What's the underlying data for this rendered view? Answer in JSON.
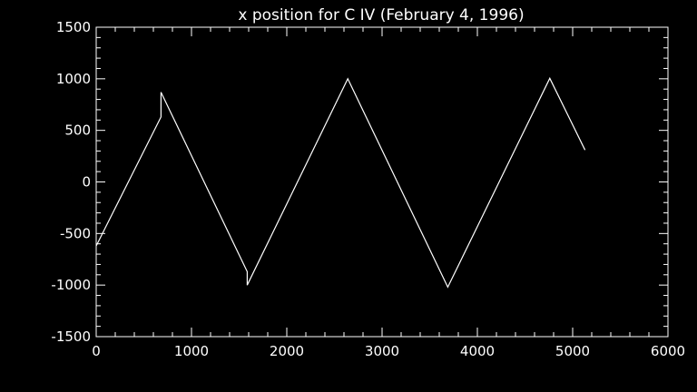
{
  "chart_data": {
    "type": "line",
    "title": "x position for C IV (February 4, 1996)",
    "xlabel": "",
    "ylabel": "",
    "xlim": [
      0,
      6000
    ],
    "ylim": [
      -1500,
      1500
    ],
    "x_ticks": [
      0,
      1000,
      2000,
      3000,
      4000,
      5000,
      6000
    ],
    "y_ticks": [
      -1500,
      -1000,
      -500,
      0,
      500,
      1000,
      1500
    ],
    "x_minor_step": 200,
    "y_minor_step": 100,
    "grid": false,
    "background_color": "#000000",
    "foreground_color": "#ffffff",
    "series": [
      {
        "x": [
          0,
          680,
          680,
          1585,
          1585,
          2640,
          3690,
          4760,
          5130
        ],
        "y": [
          -620,
          630,
          870,
          -870,
          -1000,
          1000,
          -1020,
          1005,
          310
        ]
      }
    ]
  }
}
